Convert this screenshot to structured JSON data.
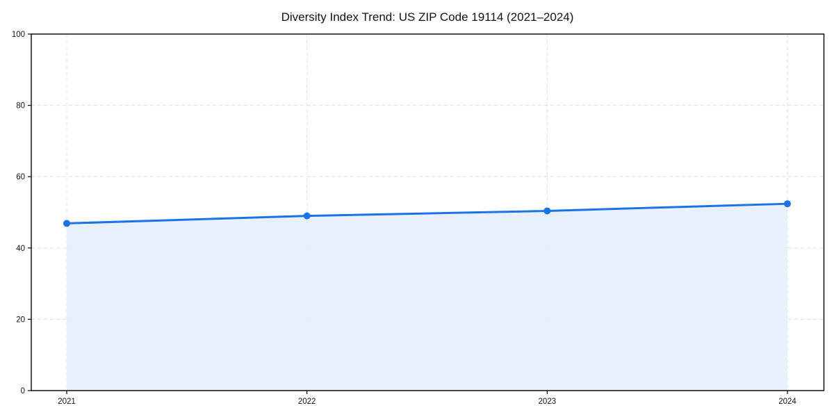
{
  "chart_data": {
    "type": "area",
    "title": "Diversity Index Trend: US ZIP Code 19114 (2021–2024)",
    "categories": [
      "2021",
      "2022",
      "2023",
      "2024"
    ],
    "series": [
      {
        "name": "Diversity Index",
        "values": [
          46.9,
          49.0,
          50.4,
          52.4
        ]
      }
    ],
    "xlabel": "",
    "ylabel": "",
    "ylim": [
      0,
      100
    ],
    "yticks": [
      0,
      20,
      40,
      60,
      80,
      100
    ],
    "grid": "dashed-both",
    "legend_position": "none",
    "marker_style": "circle",
    "colors": {
      "line": "#1a73e8",
      "marker": "#1a73e8",
      "area_fill": "#e6eefc",
      "grid": "#dedede",
      "axis_frame": "#000000",
      "tick_text": "#111111",
      "title_text": "#111111",
      "background": "#ffffff"
    }
  }
}
